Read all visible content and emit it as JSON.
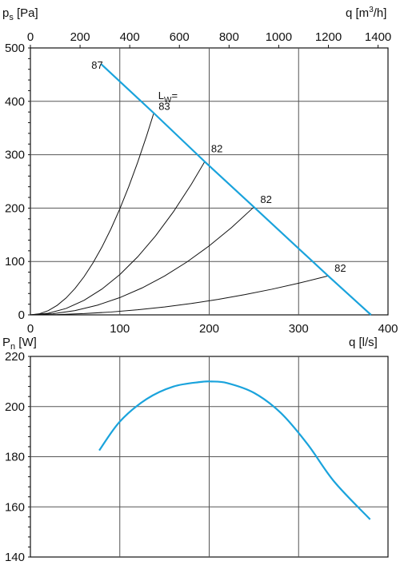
{
  "chart_data": [
    {
      "type": "line",
      "ylabel": "ps [Pa]",
      "xlabel_bottom": "q [l/s]",
      "xlabel_top": "q [m3/h]",
      "xlim": [
        0,
        400
      ],
      "ylim": [
        0,
        500
      ],
      "x_ticks": [
        0,
        100,
        200,
        300,
        400
      ],
      "y_ticks": [
        0,
        100,
        200,
        300,
        400,
        500
      ],
      "top_x_ticks": [
        0,
        200,
        400,
        600,
        800,
        1000,
        1200,
        1400
      ],
      "top_x_factor": 3.6,
      "grid": true,
      "lw_label": "LW=",
      "series": [
        {
          "kind": "system",
          "x": [
            0,
            10,
            20,
            30,
            40,
            50,
            60,
            70,
            80,
            90,
            100,
            110,
            120,
            130,
            138
          ],
          "power": 2
        },
        {
          "kind": "system",
          "x": [
            0,
            20,
            40,
            60,
            80,
            100,
            120,
            140,
            160,
            180,
            195
          ],
          "power": 2
        },
        {
          "kind": "system",
          "x": [
            0,
            25,
            50,
            75,
            100,
            125,
            150,
            175,
            200,
            225,
            250
          ],
          "power": 2
        },
        {
          "kind": "system",
          "x": [
            0,
            30,
            60,
            90,
            120,
            150,
            180,
            210,
            240,
            270,
            300,
            333
          ],
          "power": 2
        },
        {
          "kind": "fan",
          "x": [
            79,
            138,
            195,
            250,
            333,
            381
          ],
          "y": [
            470,
            378,
            287,
            202,
            73,
            0
          ]
        }
      ],
      "end_points": [
        {
          "x": 138,
          "y": 378
        },
        {
          "x": 195,
          "y": 287
        },
        {
          "x": 250,
          "y": 202
        },
        {
          "x": 333,
          "y": 73
        }
      ],
      "annotations": [
        {
          "text": "87",
          "x": 79,
          "y": 470
        },
        {
          "text": "83",
          "x": 138,
          "y": 378
        },
        {
          "text": "82",
          "x": 195,
          "y": 287
        },
        {
          "text": "82",
          "x": 250,
          "y": 202
        },
        {
          "text": "82",
          "x": 333,
          "y": 73
        }
      ],
      "colors": {
        "fan": "#1aa3dc",
        "system": "#111111"
      }
    },
    {
      "type": "line",
      "ylabel": "Pn [W]",
      "xlabel": "q [l/s]",
      "xlim": [
        0,
        400
      ],
      "ylim": [
        140,
        220
      ],
      "y_ticks": [
        140,
        160,
        180,
        200,
        220
      ],
      "grid": true,
      "series": [
        {
          "x": [
            77,
            100,
            130,
            160,
            190,
            202,
            220,
            250,
            280,
            310,
            340,
            380
          ],
          "y": [
            182.5,
            194,
            203,
            208,
            209.8,
            210,
            209.4,
            205.5,
            197.5,
            185,
            170,
            155
          ]
        }
      ],
      "colors": {
        "line": "#1aa3dc"
      }
    }
  ]
}
